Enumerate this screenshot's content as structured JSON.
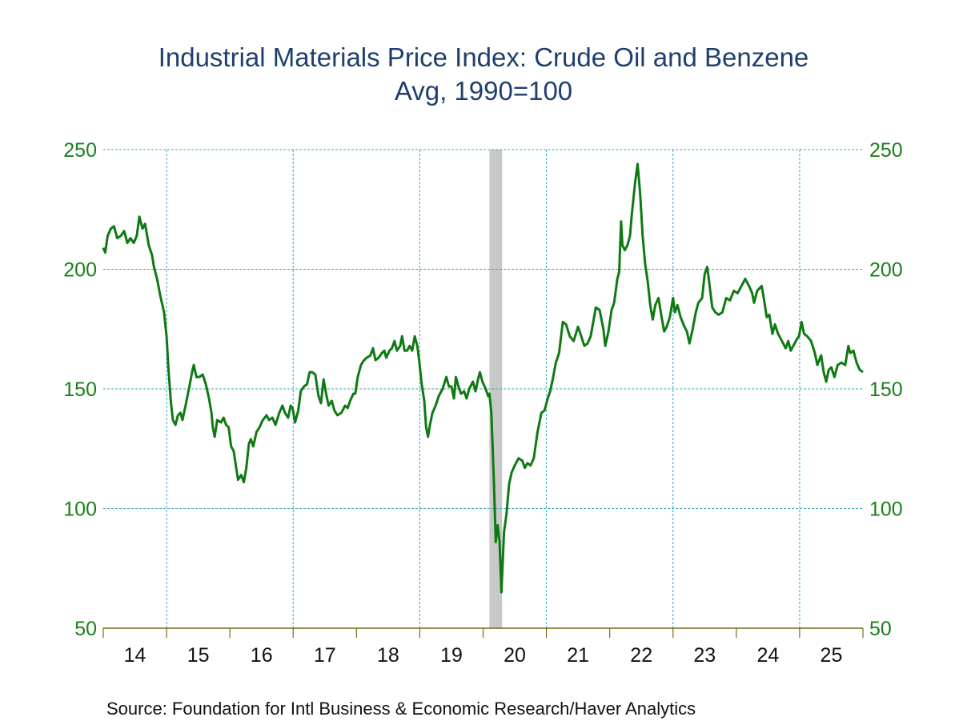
{
  "chart_data": {
    "type": "line",
    "title": "Industrial Materials Price Index: Crude Oil and Benzene",
    "subtitle": "Avg, 1990=100",
    "xlabel": "",
    "ylabel": "",
    "ylim": [
      50,
      250
    ],
    "xlim": [
      2014.0,
      2026.0
    ],
    "yticks": [
      50,
      100,
      150,
      200,
      250
    ],
    "yticks_right": [
      50,
      100,
      150,
      200,
      250
    ],
    "xtick_labels": [
      "14",
      "15",
      "16",
      "17",
      "18",
      "19",
      "20",
      "21",
      "22",
      "23",
      "24",
      "25"
    ],
    "grid": true,
    "legend": "none",
    "recession_band": [
      2020.1,
      2020.3
    ],
    "colors": {
      "line": "#0f7a14",
      "grid": "#2fa9c9",
      "axis": "#7a6a18",
      "band": "#c8c8c8",
      "ytick": "#1a7f1a",
      "title": "#1f3f6e"
    },
    "series": [
      {
        "name": "Crude Oil and Benzene",
        "points": [
          [
            2014.0,
            209
          ],
          [
            2014.03,
            207
          ],
          [
            2014.07,
            214
          ],
          [
            2014.12,
            217
          ],
          [
            2014.17,
            218
          ],
          [
            2014.22,
            213
          ],
          [
            2014.28,
            214
          ],
          [
            2014.33,
            216
          ],
          [
            2014.38,
            211
          ],
          [
            2014.43,
            213
          ],
          [
            2014.48,
            211
          ],
          [
            2014.53,
            214
          ],
          [
            2014.57,
            222
          ],
          [
            2014.62,
            217
          ],
          [
            2014.66,
            219
          ],
          [
            2014.72,
            210
          ],
          [
            2014.77,
            206
          ],
          [
            2014.8,
            201
          ],
          [
            2014.85,
            196
          ],
          [
            2014.9,
            189
          ],
          [
            2014.96,
            182
          ],
          [
            2015.0,
            172
          ],
          [
            2015.03,
            158
          ],
          [
            2015.07,
            144
          ],
          [
            2015.1,
            137
          ],
          [
            2015.14,
            135
          ],
          [
            2015.18,
            139
          ],
          [
            2015.22,
            140
          ],
          [
            2015.25,
            137
          ],
          [
            2015.3,
            143
          ],
          [
            2015.36,
            151
          ],
          [
            2015.41,
            158
          ],
          [
            2015.43,
            160
          ],
          [
            2015.47,
            155
          ],
          [
            2015.52,
            155
          ],
          [
            2015.57,
            156
          ],
          [
            2015.62,
            152
          ],
          [
            2015.67,
            146
          ],
          [
            2015.71,
            140
          ],
          [
            2015.73,
            134
          ],
          [
            2015.76,
            130
          ],
          [
            2015.8,
            137
          ],
          [
            2015.86,
            136
          ],
          [
            2015.9,
            138
          ],
          [
            2015.94,
            135
          ],
          [
            2015.98,
            134
          ],
          [
            2016.02,
            126
          ],
          [
            2016.06,
            124
          ],
          [
            2016.1,
            117
          ],
          [
            2016.13,
            112
          ],
          [
            2016.18,
            114
          ],
          [
            2016.22,
            111
          ],
          [
            2016.26,
            117
          ],
          [
            2016.3,
            127
          ],
          [
            2016.33,
            129
          ],
          [
            2016.37,
            126
          ],
          [
            2016.42,
            132
          ],
          [
            2016.47,
            134
          ],
          [
            2016.52,
            137
          ],
          [
            2016.58,
            139
          ],
          [
            2016.62,
            137
          ],
          [
            2016.67,
            138
          ],
          [
            2016.72,
            135
          ],
          [
            2016.78,
            140
          ],
          [
            2016.83,
            143
          ],
          [
            2016.87,
            140
          ],
          [
            2016.92,
            138
          ],
          [
            2016.96,
            143
          ],
          [
            2016.99,
            142
          ],
          [
            2017.03,
            136
          ],
          [
            2017.08,
            141
          ],
          [
            2017.12,
            149
          ],
          [
            2017.17,
            151
          ],
          [
            2017.22,
            152
          ],
          [
            2017.26,
            157
          ],
          [
            2017.3,
            157
          ],
          [
            2017.35,
            156
          ],
          [
            2017.4,
            147
          ],
          [
            2017.44,
            144
          ],
          [
            2017.48,
            154
          ],
          [
            2017.52,
            148
          ],
          [
            2017.56,
            143
          ],
          [
            2017.61,
            145
          ],
          [
            2017.65,
            141
          ],
          [
            2017.7,
            139
          ],
          [
            2017.76,
            140
          ],
          [
            2017.82,
            143
          ],
          [
            2017.86,
            142
          ],
          [
            2017.9,
            145
          ],
          [
            2017.95,
            148
          ],
          [
            2017.98,
            148
          ],
          [
            2018.02,
            155
          ],
          [
            2018.07,
            160
          ],
          [
            2018.12,
            162
          ],
          [
            2018.16,
            163
          ],
          [
            2018.22,
            164
          ],
          [
            2018.26,
            167
          ],
          [
            2018.3,
            162
          ],
          [
            2018.35,
            163
          ],
          [
            2018.4,
            165
          ],
          [
            2018.44,
            166
          ],
          [
            2018.47,
            163
          ],
          [
            2018.52,
            166
          ],
          [
            2018.56,
            167
          ],
          [
            2018.6,
            170
          ],
          [
            2018.64,
            166
          ],
          [
            2018.69,
            168
          ],
          [
            2018.72,
            172
          ],
          [
            2018.76,
            166
          ],
          [
            2018.8,
            166
          ],
          [
            2018.84,
            168
          ],
          [
            2018.88,
            166
          ],
          [
            2018.92,
            172
          ],
          [
            2018.96,
            168
          ],
          [
            2018.99,
            162
          ],
          [
            2019.03,
            152
          ],
          [
            2019.07,
            145
          ],
          [
            2019.1,
            134
          ],
          [
            2019.13,
            130
          ],
          [
            2019.16,
            135
          ],
          [
            2019.2,
            140
          ],
          [
            2019.25,
            143
          ],
          [
            2019.3,
            147
          ],
          [
            2019.36,
            150
          ],
          [
            2019.42,
            155
          ],
          [
            2019.46,
            151
          ],
          [
            2019.5,
            151
          ],
          [
            2019.54,
            146
          ],
          [
            2019.57,
            155
          ],
          [
            2019.61,
            151
          ],
          [
            2019.65,
            148
          ],
          [
            2019.7,
            149
          ],
          [
            2019.74,
            146
          ],
          [
            2019.78,
            150
          ],
          [
            2019.84,
            153
          ],
          [
            2019.88,
            149
          ],
          [
            2019.92,
            154
          ],
          [
            2019.95,
            157
          ],
          [
            2019.99,
            153
          ],
          [
            2020.04,
            150
          ],
          [
            2020.08,
            147
          ],
          [
            2020.1,
            148
          ],
          [
            2020.13,
            140
          ],
          [
            2020.17,
            112
          ],
          [
            2020.2,
            86
          ],
          [
            2020.23,
            93
          ],
          [
            2020.26,
            86
          ],
          [
            2020.29,
            65
          ],
          [
            2020.33,
            90
          ],
          [
            2020.37,
            98
          ],
          [
            2020.41,
            110
          ],
          [
            2020.45,
            115
          ],
          [
            2020.5,
            118
          ],
          [
            2020.56,
            121
          ],
          [
            2020.62,
            120
          ],
          [
            2020.66,
            117
          ],
          [
            2020.7,
            119
          ],
          [
            2020.75,
            118
          ],
          [
            2020.8,
            121
          ],
          [
            2020.86,
            132
          ],
          [
            2020.92,
            140
          ],
          [
            2020.97,
            141
          ],
          [
            2021.02,
            146
          ],
          [
            2021.06,
            149
          ],
          [
            2021.1,
            154
          ],
          [
            2021.15,
            161
          ],
          [
            2021.2,
            165
          ],
          [
            2021.26,
            178
          ],
          [
            2021.31,
            177
          ],
          [
            2021.37,
            172
          ],
          [
            2021.43,
            170
          ],
          [
            2021.5,
            176
          ],
          [
            2021.55,
            172
          ],
          [
            2021.6,
            168
          ],
          [
            2021.65,
            169
          ],
          [
            2021.7,
            172
          ],
          [
            2021.78,
            184
          ],
          [
            2021.84,
            183
          ],
          [
            2021.9,
            175
          ],
          [
            2021.93,
            168
          ],
          [
            2021.98,
            174
          ],
          [
            2022.03,
            183
          ],
          [
            2022.07,
            186
          ],
          [
            2022.12,
            196
          ],
          [
            2022.15,
            199
          ],
          [
            2022.18,
            220
          ],
          [
            2022.2,
            210
          ],
          [
            2022.24,
            208
          ],
          [
            2022.28,
            210
          ],
          [
            2022.32,
            214
          ],
          [
            2022.35,
            223
          ],
          [
            2022.4,
            236
          ],
          [
            2022.44,
            244
          ],
          [
            2022.48,
            232
          ],
          [
            2022.52,
            214
          ],
          [
            2022.56,
            202
          ],
          [
            2022.6,
            195
          ],
          [
            2022.64,
            185
          ],
          [
            2022.68,
            179
          ],
          [
            2022.72,
            185
          ],
          [
            2022.77,
            188
          ],
          [
            2022.82,
            180
          ],
          [
            2022.86,
            174
          ],
          [
            2022.9,
            176
          ],
          [
            2022.95,
            180
          ],
          [
            2023.0,
            188
          ],
          [
            2023.03,
            182
          ],
          [
            2023.07,
            185
          ],
          [
            2023.12,
            180
          ],
          [
            2023.18,
            176
          ],
          [
            2023.22,
            174
          ],
          [
            2023.26,
            169
          ],
          [
            2023.31,
            175
          ],
          [
            2023.36,
            182
          ],
          [
            2023.4,
            186
          ],
          [
            2023.46,
            188
          ],
          [
            2023.5,
            198
          ],
          [
            2023.54,
            201
          ],
          [
            2023.57,
            195
          ],
          [
            2023.62,
            184
          ],
          [
            2023.67,
            182
          ],
          [
            2023.72,
            181
          ],
          [
            2023.78,
            182
          ],
          [
            2023.84,
            188
          ],
          [
            2023.9,
            187
          ],
          [
            2023.96,
            191
          ],
          [
            2024.02,
            190
          ],
          [
            2024.08,
            193
          ],
          [
            2024.14,
            196
          ],
          [
            2024.2,
            193
          ],
          [
            2024.25,
            190
          ],
          [
            2024.28,
            186
          ],
          [
            2024.33,
            191
          ],
          [
            2024.4,
            193
          ],
          [
            2024.44,
            187
          ],
          [
            2024.48,
            180
          ],
          [
            2024.52,
            181
          ],
          [
            2024.57,
            173
          ],
          [
            2024.61,
            177
          ],
          [
            2024.66,
            173
          ],
          [
            2024.72,
            170
          ],
          [
            2024.78,
            167
          ],
          [
            2024.82,
            170
          ],
          [
            2024.86,
            166
          ],
          [
            2024.92,
            169
          ],
          [
            2024.96,
            171
          ],
          [
            2024.99,
            172
          ],
          [
            2025.03,
            178
          ],
          [
            2025.07,
            173
          ],
          [
            2025.12,
            172
          ],
          [
            2025.18,
            170
          ],
          [
            2025.24,
            165
          ],
          [
            2025.28,
            160
          ],
          [
            2025.34,
            164
          ],
          [
            2025.38,
            157
          ],
          [
            2025.42,
            153
          ],
          [
            2025.46,
            158
          ],
          [
            2025.5,
            159
          ],
          [
            2025.55,
            155
          ],
          [
            2025.6,
            160
          ],
          [
            2025.66,
            161
          ],
          [
            2025.72,
            160
          ],
          [
            2025.77,
            168
          ],
          [
            2025.8,
            165
          ],
          [
            2025.85,
            166
          ],
          [
            2025.9,
            161
          ],
          [
            2025.95,
            158
          ],
          [
            2026.0,
            157
          ]
        ]
      }
    ]
  },
  "source": "Source:  Foundation for Intl Business & Economic Research/Haver Analytics"
}
